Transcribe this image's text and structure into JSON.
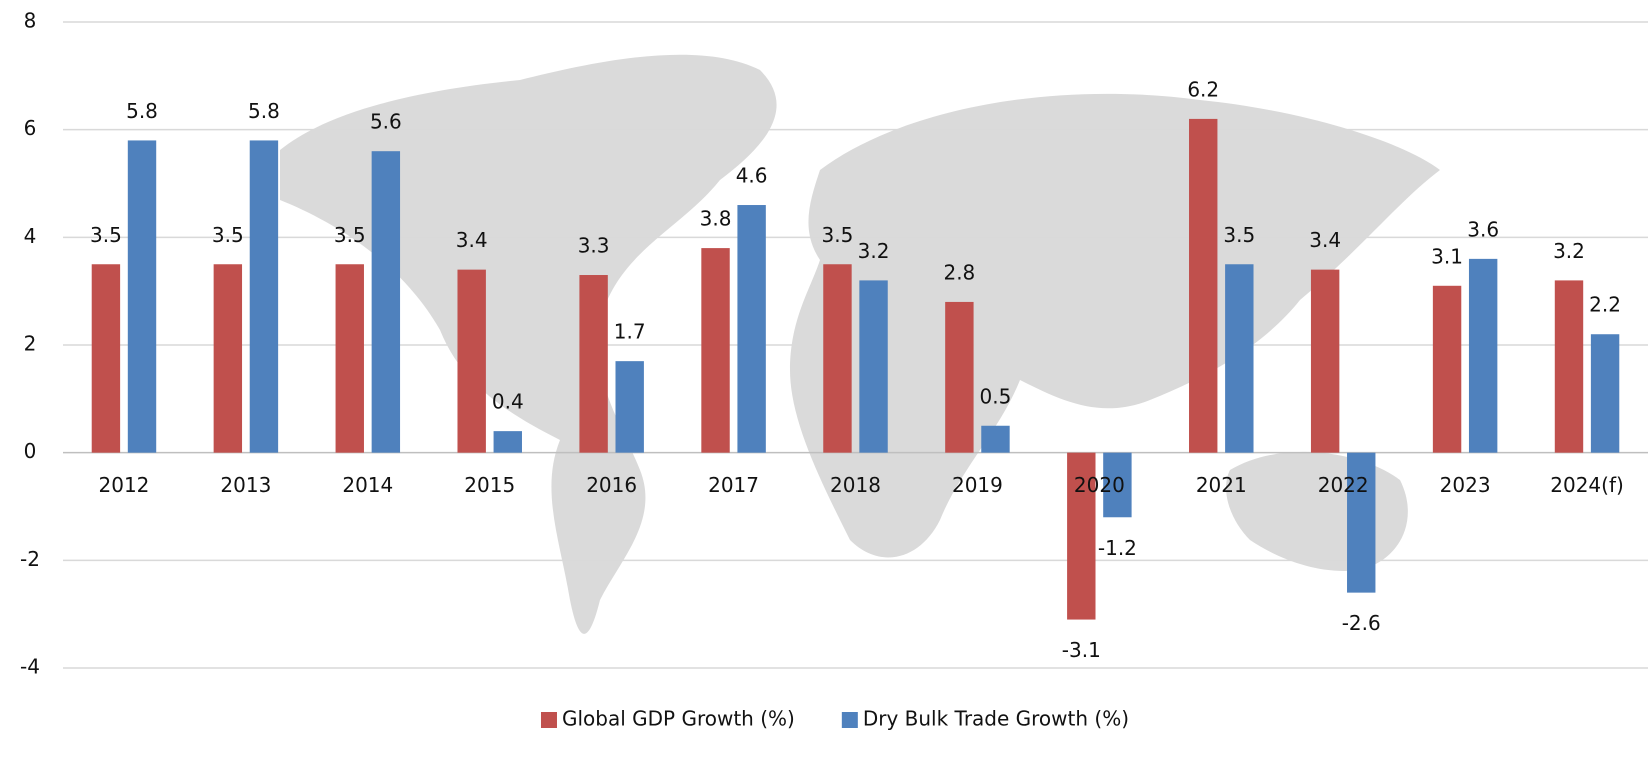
{
  "chart_data": {
    "type": "bar",
    "categories": [
      "2012",
      "2013",
      "2014",
      "2015",
      "2016",
      "2017",
      "2018",
      "2019",
      "2020",
      "2021",
      "2022",
      "2023",
      "2024(f)"
    ],
    "series": [
      {
        "name": "Global GDP Growth (%)",
        "color": "#c0504d",
        "values": [
          3.5,
          3.5,
          3.5,
          3.4,
          3.3,
          3.8,
          3.5,
          2.8,
          -3.1,
          6.2,
          3.4,
          3.1,
          3.2
        ]
      },
      {
        "name": "Dry Bulk Trade Growth (%)",
        "color": "#4f81bd",
        "values": [
          5.8,
          5.8,
          5.6,
          0.4,
          1.7,
          4.6,
          3.2,
          0.5,
          -1.2,
          3.5,
          -2.6,
          3.6,
          2.2
        ]
      }
    ],
    "ylim": [
      -4,
      8
    ],
    "yticks": [
      -4,
      -2,
      0,
      2,
      4,
      6,
      8
    ],
    "grid": true,
    "legend": "bottom"
  }
}
